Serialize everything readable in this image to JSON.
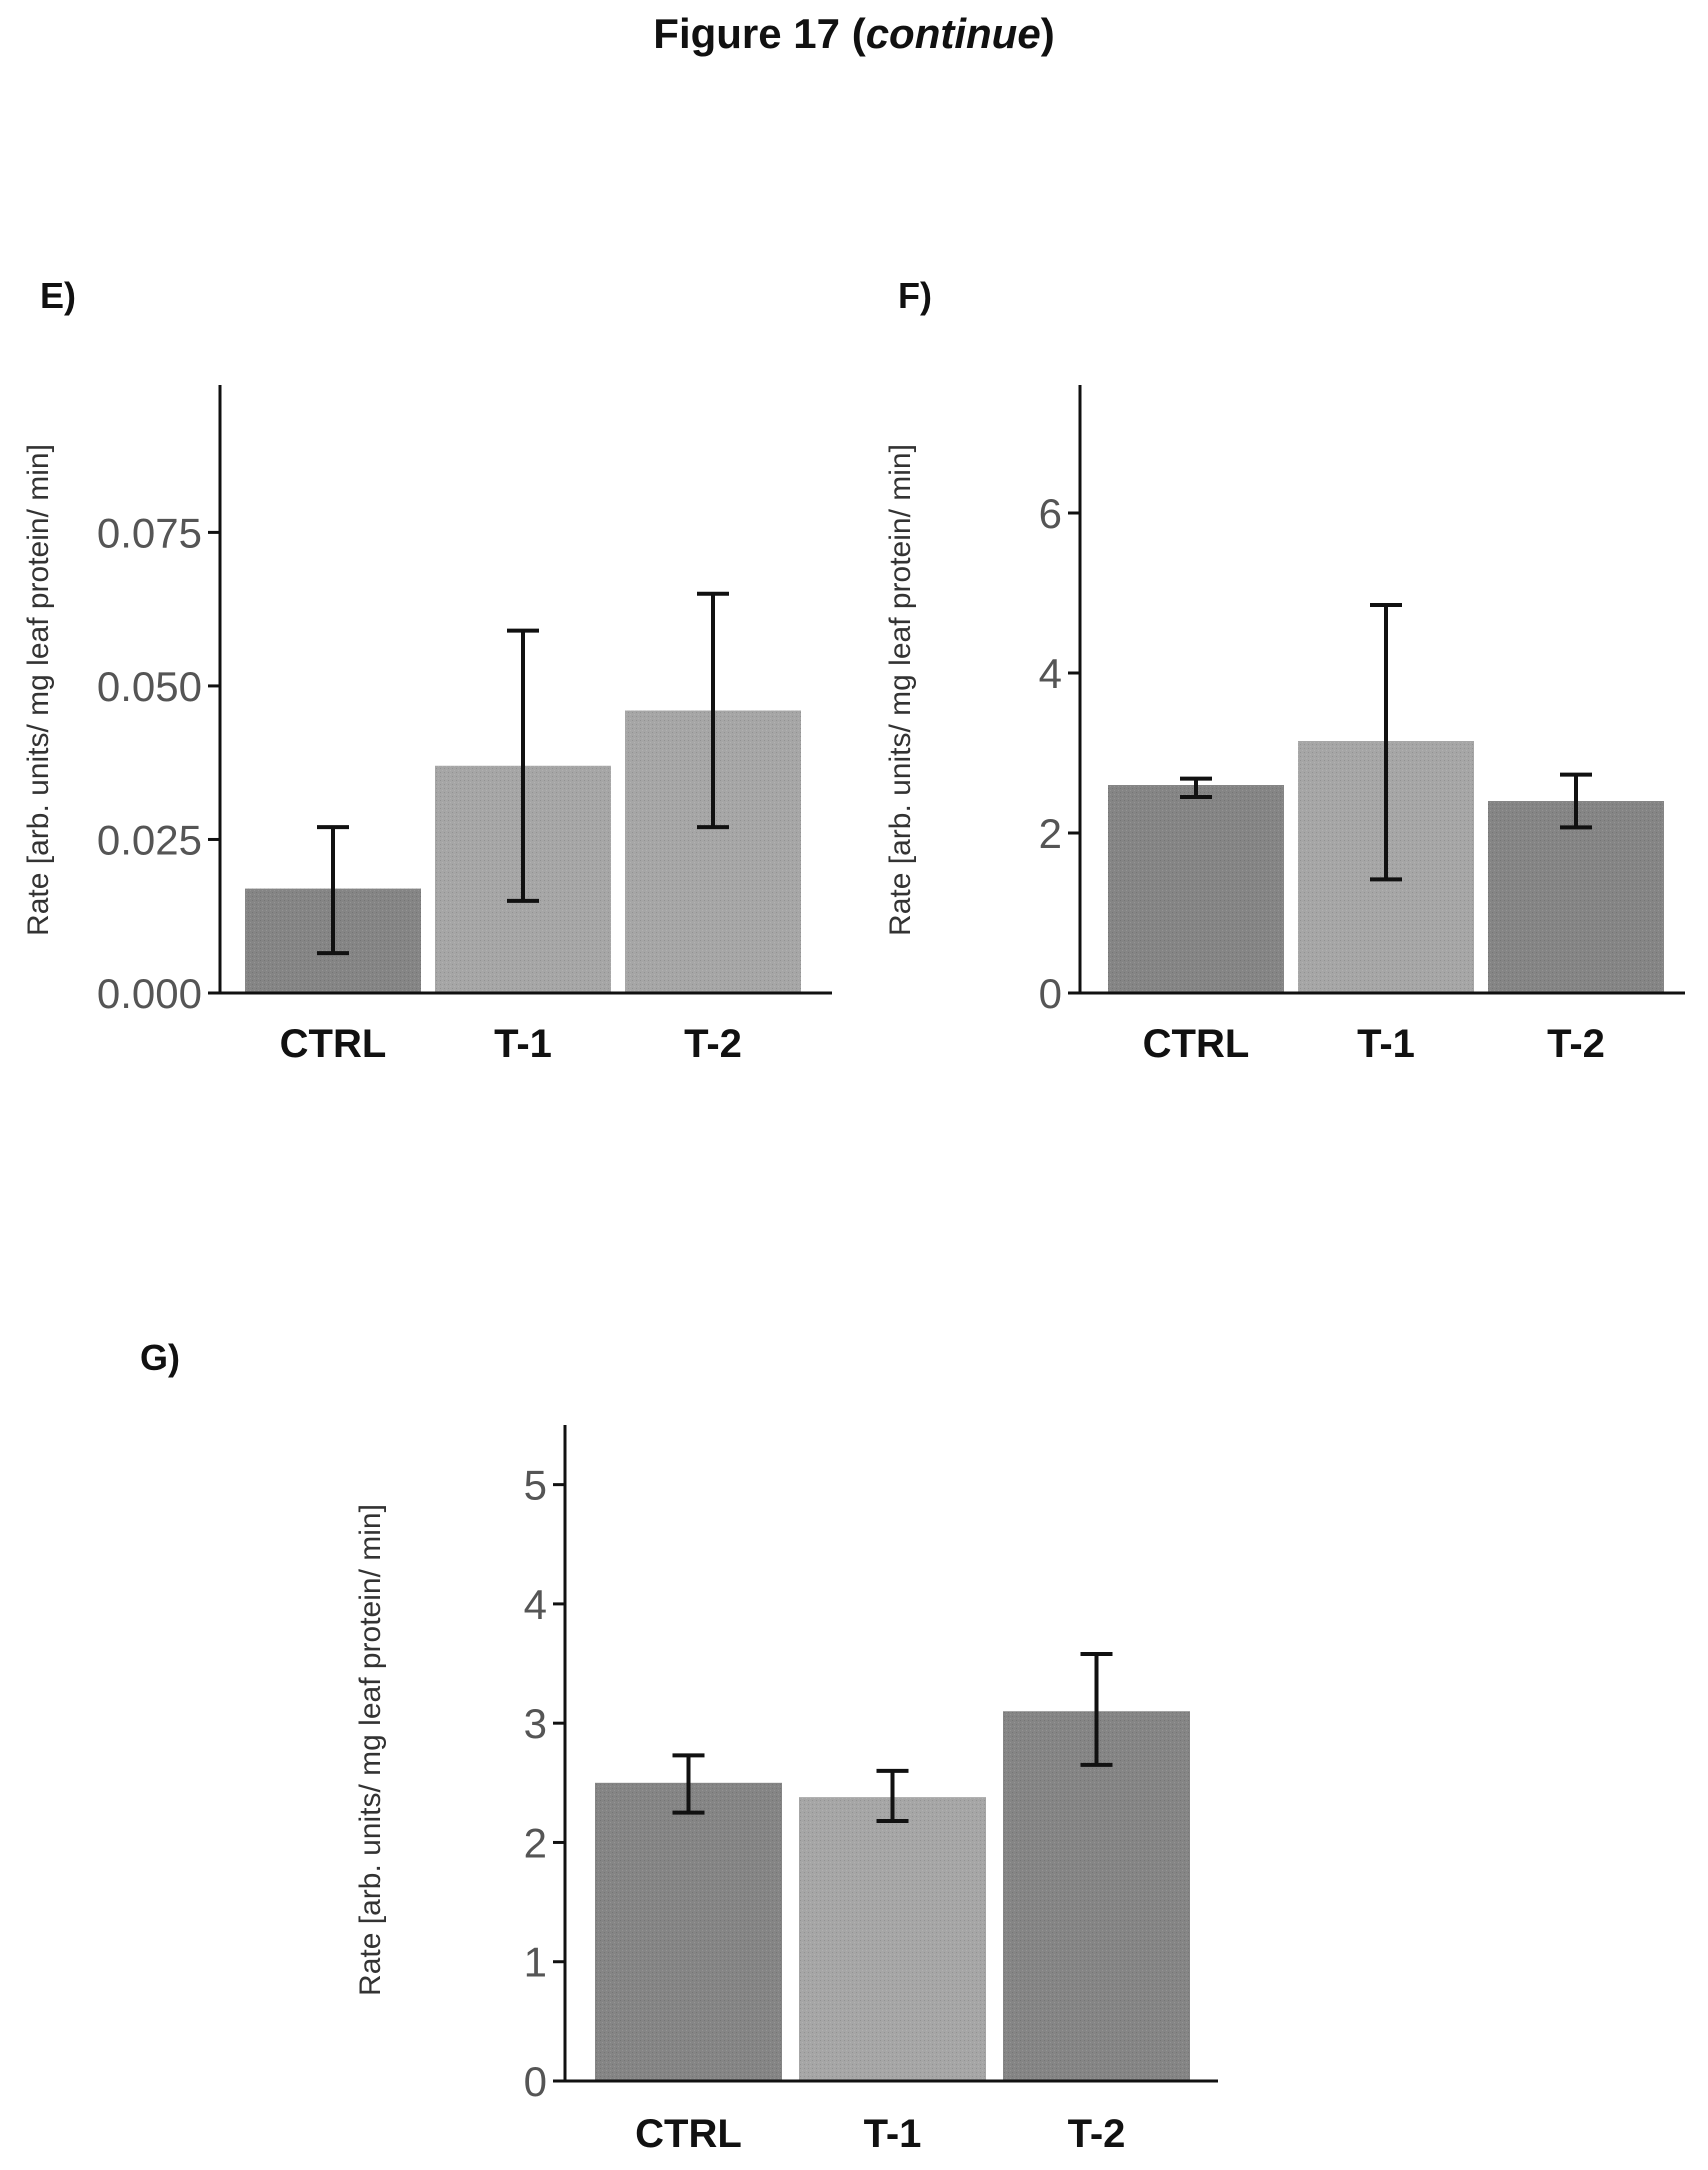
{
  "figure": {
    "title_main": "Figure 17 (",
    "title_italic": "continue",
    "title_end": ")"
  },
  "colors": {
    "bar_dark": "#858585",
    "bar_light": "#a6a6a6",
    "axis": "#111111",
    "error": "#111111"
  },
  "chart_data": [
    {
      "panel": "E)",
      "type": "bar",
      "categories": [
        "CTRL",
        "T-1",
        "T-2"
      ],
      "values": [
        0.017,
        0.037,
        0.046
      ],
      "error_low": [
        0.0065,
        0.015,
        0.027
      ],
      "error_high": [
        0.027,
        0.059,
        0.065
      ],
      "bar_colors": [
        "dark",
        "light",
        "light"
      ],
      "ylabel": "Rate [arb. units/ mg leaf protein/ min]",
      "ylim": [
        0,
        0.099
      ],
      "yticks": [
        0.0,
        0.025,
        0.05,
        0.075
      ],
      "ytick_labels": [
        "0.000",
        "0.025",
        "0.050",
        "0.075"
      ]
    },
    {
      "panel": "F)",
      "type": "bar",
      "categories": [
        "CTRL",
        "T-1",
        "T-2"
      ],
      "values": [
        2.6,
        3.15,
        2.4
      ],
      "error_low": [
        2.45,
        1.42,
        2.07
      ],
      "error_high": [
        2.68,
        4.85,
        2.73
      ],
      "bar_colors": [
        "dark",
        "light",
        "dark"
      ],
      "ylabel": "Rate [arb. units/ mg leaf protein/ min]",
      "ylim": [
        0,
        7.6
      ],
      "yticks": [
        0,
        2,
        4,
        6
      ],
      "ytick_labels": [
        "0",
        "2",
        "4",
        "6"
      ]
    },
    {
      "panel": "G)",
      "type": "bar",
      "categories": [
        "CTRL",
        "T-1",
        "T-2"
      ],
      "values": [
        2.5,
        2.38,
        3.1
      ],
      "error_low": [
        2.25,
        2.18,
        2.65
      ],
      "error_high": [
        2.73,
        2.6,
        3.58
      ],
      "bar_colors": [
        "dark",
        "light",
        "dark"
      ],
      "ylabel": "Rate [arb. units/ mg leaf protein/ min]",
      "ylim": [
        0,
        5.5
      ],
      "yticks": [
        0,
        1,
        2,
        3,
        4,
        5
      ],
      "ytick_labels": [
        "0",
        "1",
        "2",
        "3",
        "4",
        "5"
      ]
    }
  ]
}
